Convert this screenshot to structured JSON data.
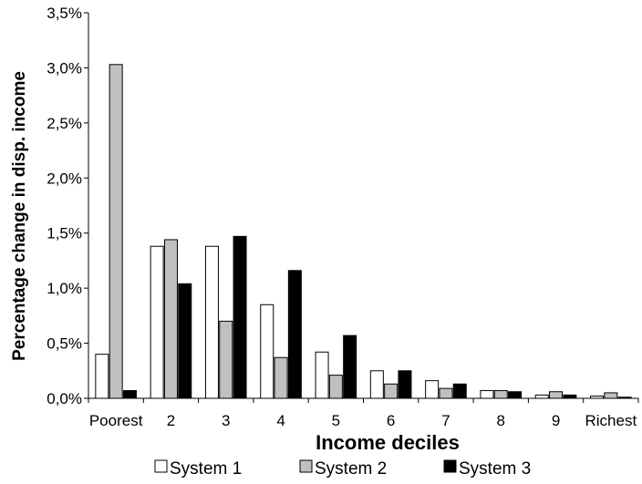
{
  "chart_data": {
    "type": "bar",
    "xlabel": "Income deciles",
    "ylabel": "Percentage change in disp. income",
    "categories": [
      "Poorest",
      "2",
      "3",
      "4",
      "5",
      "6",
      "7",
      "8",
      "9",
      "Richest"
    ],
    "ylim": [
      0,
      3.5
    ],
    "yticks": [
      "0,0%",
      "0,5%",
      "1,0%",
      "1,5%",
      "2,0%",
      "2,5%",
      "3,0%",
      "3,5%"
    ],
    "grid": false,
    "legend_position": "bottom",
    "series": [
      {
        "name": "System 1",
        "color": "#ffffff",
        "values": [
          0.4,
          1.38,
          1.38,
          0.85,
          0.42,
          0.25,
          0.16,
          0.07,
          0.03,
          0.02
        ]
      },
      {
        "name": "System 2",
        "color": "#c0c0c0",
        "values": [
          3.03,
          1.44,
          0.7,
          0.37,
          0.21,
          0.13,
          0.09,
          0.07,
          0.06,
          0.05
        ]
      },
      {
        "name": "System 3",
        "color": "#000000",
        "values": [
          0.07,
          1.04,
          1.47,
          1.16,
          0.57,
          0.25,
          0.13,
          0.06,
          0.03,
          0.01
        ]
      }
    ]
  }
}
